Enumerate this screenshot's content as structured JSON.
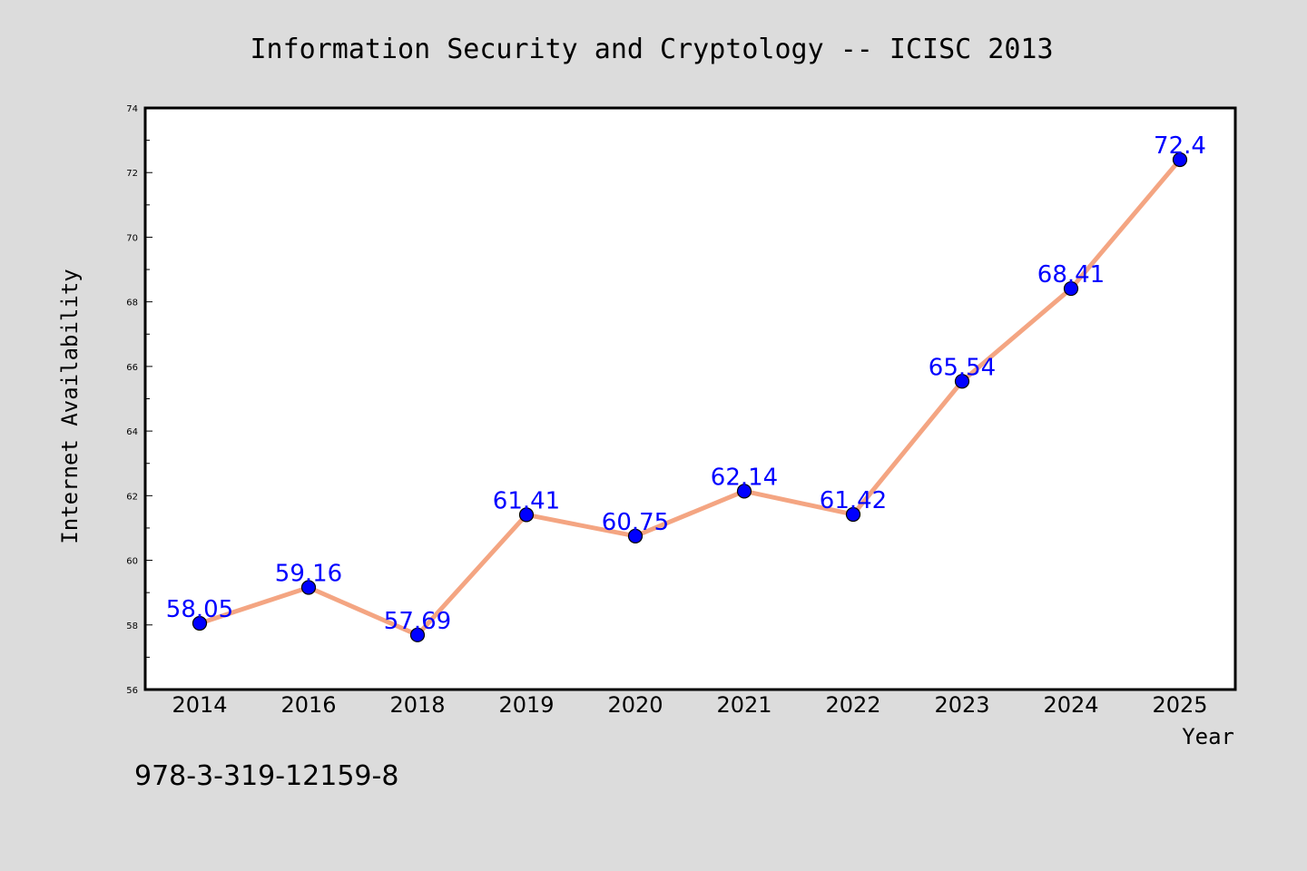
{
  "chart_data": {
    "type": "line",
    "title": "Information Security and Cryptology -- ICISC 2013",
    "xlabel": "Year",
    "ylabel": "Internet Availability",
    "categories": [
      "2014",
      "2016",
      "2018",
      "2019",
      "2020",
      "2021",
      "2022",
      "2023",
      "2024",
      "2025"
    ],
    "series": [
      {
        "values": [
          58.05,
          59.16,
          57.69,
          61.41,
          60.75,
          62.14,
          61.42,
          65.54,
          68.41,
          72.4
        ],
        "labels": [
          "58.05",
          "59.16",
          "57.69",
          "61.41",
          "60.75",
          "62.14",
          "61.42",
          "65.54",
          "68.41",
          "72.4"
        ],
        "line_color": "#f4a582",
        "marker_color": "#0000ff"
      }
    ],
    "ylim": [
      56,
      74
    ],
    "yticks": [
      56,
      58,
      60,
      62,
      64,
      66,
      68,
      70,
      72,
      74
    ],
    "grid": false,
    "legend": "none",
    "background_color": "#dcdcdc",
    "plot_background_color": "#ffffff"
  },
  "footnote": "978-3-319-12159-8"
}
